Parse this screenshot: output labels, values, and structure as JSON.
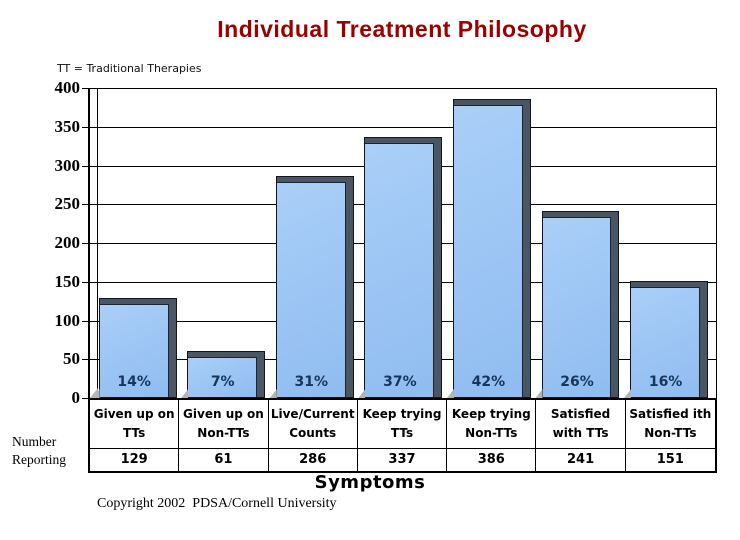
{
  "title": "Individual Treatment Philosophy",
  "note": "TT = Traditional Therapies",
  "left_label": {
    "line1": "Number",
    "line2": "Reporting"
  },
  "footer": {
    "xlabel": "Symptoms",
    "copyright": "Copyright 2002  PDSA/Cornell University"
  },
  "chart_data": {
    "type": "bar",
    "title": "Individual Treatment Philosophy",
    "xlabel": "Symptoms",
    "ylabel": "Number Reporting",
    "annotation": "TT = Traditional Therapies",
    "ylim": [
      0,
      400
    ],
    "yticks": [
      0,
      50,
      100,
      150,
      200,
      250,
      300,
      350,
      400
    ],
    "grid": true,
    "legend": false,
    "categories": [
      "Given up on TTs",
      "Given up on Non-TTs",
      "Live/Current Counts",
      "Keep trying TTs",
      "Keep trying Non-TTs",
      "Satisfied with TTs",
      "Satisfied ith Non-TTs"
    ],
    "categories_lines": [
      [
        "Given up on",
        "TTs"
      ],
      [
        "Given up on",
        "Non-TTs"
      ],
      [
        "Live/Current",
        "Counts"
      ],
      [
        "Keep trying",
        "TTs"
      ],
      [
        "Keep trying",
        "Non-TTs"
      ],
      [
        "Satisfied",
        "with TTs"
      ],
      [
        "Satisfied ith",
        "Non-TTs"
      ]
    ],
    "values": [
      129,
      61,
      286,
      337,
      386,
      241,
      151
    ],
    "percent_values": [
      14,
      7,
      31,
      37,
      42,
      26,
      16
    ],
    "percent_labels": [
      "14%",
      "7%",
      "31%",
      "37%",
      "42%",
      "26%",
      "16%"
    ],
    "colors": {
      "title": "#990000",
      "bar_fill_top": "#AACFF8",
      "bar_fill_bottom": "#8FBCF0",
      "bar_edge": "#4A5663",
      "percent_text": "#16365C",
      "axis": "#000000"
    }
  }
}
